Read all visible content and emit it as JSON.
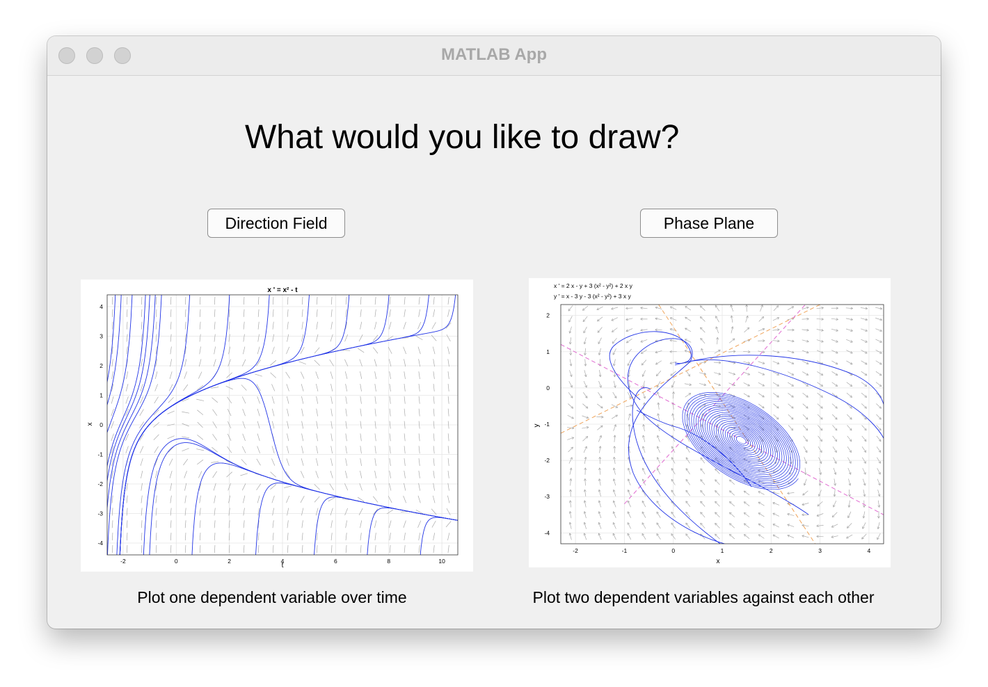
{
  "window": {
    "title": "MATLAB App"
  },
  "main": {
    "heading": "What would you like to draw?",
    "buttons": {
      "direction_field": "Direction Field",
      "phase_plane": "Phase Plane"
    },
    "captions": {
      "direction_field": "Plot one dependent variable over time",
      "phase_plane": "Plot two dependent variables against each other"
    }
  },
  "colors": {
    "trajectory": "#1f32e6",
    "arrows": "#a9a9a9",
    "nullcline_x": "#f0a45a",
    "nullcline_y": "#e06ad0"
  },
  "chart_data": [
    {
      "type": "line",
      "title": "x ' = x² - t",
      "xlabel": "t",
      "ylabel": "x",
      "xlim": [
        -2.6,
        10.6
      ],
      "ylim": [
        -4.4,
        4.4
      ],
      "xticks": [
        "-2",
        "0",
        "2",
        "4",
        "6",
        "8",
        "10"
      ],
      "yticks": [
        "-4",
        "-3",
        "-2",
        "-1",
        "0",
        "1",
        "2",
        "3",
        "4"
      ],
      "grid": true,
      "series_description": "solution curves of x' = x^2 - t"
    },
    {
      "type": "line",
      "title_lines": [
        "x ' = 2 x - y + 3 (x² - y²) + 2 x y",
        "y ' = x - 3 y - 3 (x² - y²) + 3 x y"
      ],
      "xlabel": "x",
      "ylabel": "y",
      "xlim": [
        -2.3,
        4.3
      ],
      "ylim": [
        -4.3,
        2.3
      ],
      "xticks": [
        "-2",
        "-1",
        "0",
        "1",
        "2",
        "3",
        "4"
      ],
      "yticks": [
        "2",
        "1",
        "0",
        "-1",
        "-2",
        "-3",
        "-4"
      ],
      "grid": true,
      "series_description": "phase trajectories spiraling to equilibrium near (1.4, -1.4)"
    }
  ]
}
